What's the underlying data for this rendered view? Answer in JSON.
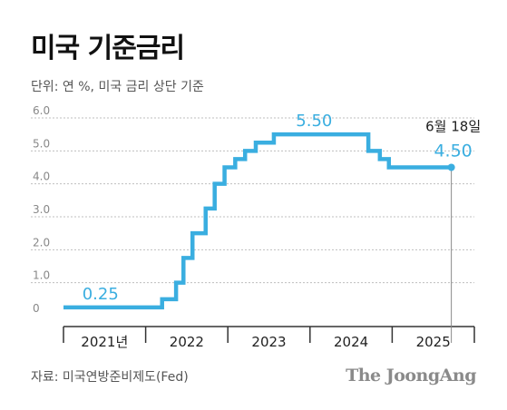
{
  "title": "미국 기준금리",
  "unit_note": "단위: 연 %, 미국 금리 상단 기준",
  "source": "자료: 미국연방준비제도(Fed)",
  "brand": "The JoongAng",
  "colors": {
    "line": "#3aaee0",
    "grid": "#bfbfbf",
    "label": "#3aaee0",
    "axis": "#333333"
  },
  "chart_data": {
    "type": "line",
    "step": true,
    "ylim": [
      0,
      6
    ],
    "yticks": [
      "0",
      "1.0",
      "2.0",
      "3.0",
      "4.0",
      "5.0",
      "6.0"
    ],
    "x_years": [
      "2021년",
      "2022",
      "2023",
      "2024",
      "2025"
    ],
    "xlim": [
      2021.0,
      2026.0
    ],
    "grid": true,
    "series": [
      {
        "points": [
          [
            2021.0,
            0.25
          ],
          [
            2022.2,
            0.5
          ],
          [
            2022.37,
            1.0
          ],
          [
            2022.46,
            1.75
          ],
          [
            2022.57,
            2.5
          ],
          [
            2022.73,
            3.25
          ],
          [
            2022.84,
            4.0
          ],
          [
            2022.96,
            4.5
          ],
          [
            2023.09,
            4.75
          ],
          [
            2023.21,
            5.0
          ],
          [
            2023.34,
            5.25
          ],
          [
            2023.56,
            5.5
          ],
          [
            2024.71,
            5.0
          ],
          [
            2024.85,
            4.75
          ],
          [
            2024.96,
            4.5
          ],
          [
            2025.72,
            4.5
          ]
        ]
      }
    ],
    "annotations": [
      {
        "label": "0.25",
        "x": 2021.45,
        "y": 0.25
      },
      {
        "label": "5.50",
        "x": 2024.05,
        "y": 5.5
      },
      {
        "label": "4.50",
        "x": 2025.72,
        "y": 4.5,
        "date": "6월 18일"
      }
    ]
  }
}
